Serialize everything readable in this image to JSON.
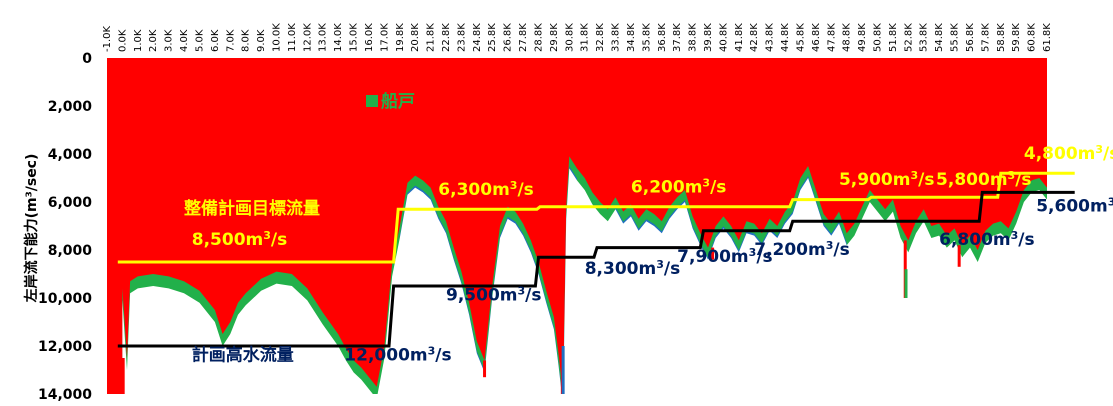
{
  "chart_data": {
    "type": "area",
    "ylabel": "左岸流下能力(m³/sec)",
    "ylim": [
      0,
      14000
    ],
    "y_inverted": true,
    "y_ticks": [
      "0",
      "2,000",
      "4,000",
      "6,000",
      "8,000",
      "10,000",
      "12,000",
      "14,000"
    ],
    "x_ticks": [
      "-1.0K",
      "0.0K",
      "1.0K",
      "2.0K",
      "3.0K",
      "4.0K",
      "5.0K",
      "6.0K",
      "7.0K",
      "8.0K",
      "9.0K",
      "10.0K",
      "11.0K",
      "12.0K",
      "13.0K",
      "14.0K",
      "15.0K",
      "16.0K",
      "17.0K",
      "19.8K",
      "20.8K",
      "21.8K",
      "22.8K",
      "23.8K",
      "24.8K",
      "25.8K",
      "26.8K",
      "27.8K",
      "28.8K",
      "29.8K",
      "30.8K",
      "31.8K",
      "32.8K",
      "33.8K",
      "34.8K",
      "35.8K",
      "36.8K",
      "37.8K",
      "38.8K",
      "39.8K",
      "40.8K",
      "41.8K",
      "42.8K",
      "43.8K",
      "44.8K",
      "45.8K",
      "46.8K",
      "47.8K",
      "48.8K",
      "49.8K",
      "50.8K",
      "51.8K",
      "52.8K",
      "53.8K",
      "54.8K",
      "55.8K",
      "56.8K",
      "57.8K",
      "58.8K",
      "59.8K",
      "60.8K",
      "61.8K"
    ],
    "colors": {
      "red": "#ff0000",
      "green": "#22b04a",
      "blue": "#1f6fc1",
      "yellow": "#ffff00",
      "black": "#000000"
    },
    "legend": {
      "label": "船戸",
      "color": "#22b04a"
    },
    "capacity_profile": [
      [
        0,
        9600
      ],
      [
        0.3,
        12500
      ],
      [
        0.5,
        9300
      ],
      [
        1,
        9100
      ],
      [
        2,
        9000
      ],
      [
        3,
        9100
      ],
      [
        4,
        9300
      ],
      [
        5,
        9700
      ],
      [
        6,
        10500
      ],
      [
        6.5,
        11500
      ],
      [
        7,
        11000
      ],
      [
        7.5,
        10200
      ],
      [
        8,
        9800
      ],
      [
        9,
        9200
      ],
      [
        10,
        8900
      ],
      [
        11,
        9000
      ],
      [
        12,
        9600
      ],
      [
        13,
        10600
      ],
      [
        14,
        11500
      ],
      [
        14.5,
        12100
      ],
      [
        15,
        12600
      ],
      [
        15.5,
        12900
      ],
      [
        16,
        13300
      ],
      [
        16.5,
        13700
      ],
      [
        17,
        12000
      ],
      [
        17.5,
        8600
      ],
      [
        18,
        7000
      ],
      [
        18.5,
        5200
      ],
      [
        19,
        4900
      ],
      [
        19.5,
        5100
      ],
      [
        20,
        5400
      ],
      [
        20.5,
        6200
      ],
      [
        21,
        6800
      ],
      [
        21.5,
        7900
      ],
      [
        22,
        8900
      ],
      [
        22.5,
        10200
      ],
      [
        23,
        11800
      ],
      [
        23.5,
        12600
      ],
      [
        24,
        9500
      ],
      [
        24.5,
        7000
      ],
      [
        25,
        6200
      ],
      [
        25.5,
        6400
      ],
      [
        26,
        6900
      ],
      [
        26.5,
        7600
      ],
      [
        27,
        8500
      ],
      [
        27.5,
        9700
      ],
      [
        28,
        10800
      ],
      [
        28.3,
        12300
      ],
      [
        28.6,
        14000
      ],
      [
        28.8,
        6200
      ],
      [
        29,
        4100
      ],
      [
        29.5,
        4600
      ],
      [
        30,
        5000
      ],
      [
        30.5,
        5600
      ],
      [
        31,
        6000
      ],
      [
        31.5,
        6300
      ],
      [
        32,
        5800
      ],
      [
        32.5,
        6400
      ],
      [
        33,
        6100
      ],
      [
        33.5,
        6700
      ],
      [
        34,
        6300
      ],
      [
        34.5,
        6500
      ],
      [
        35,
        6800
      ],
      [
        35.5,
        6200
      ],
      [
        36,
        5800
      ],
      [
        36.5,
        5500
      ],
      [
        37,
        6600
      ],
      [
        37.5,
        7300
      ],
      [
        38,
        7900
      ],
      [
        38.5,
        7000
      ],
      [
        39,
        6600
      ],
      [
        39.5,
        7000
      ],
      [
        40,
        7600
      ],
      [
        40.5,
        6800
      ],
      [
        41,
        6900
      ],
      [
        41.5,
        7300
      ],
      [
        42,
        6700
      ],
      [
        42.5,
        7000
      ],
      [
        43,
        6400
      ],
      [
        43.5,
        6000
      ],
      [
        44,
        5000
      ],
      [
        44.5,
        4500
      ],
      [
        45,
        5500
      ],
      [
        45.5,
        6500
      ],
      [
        46,
        6900
      ],
      [
        46.5,
        6400
      ],
      [
        47,
        7300
      ],
      [
        47.5,
        6900
      ],
      [
        48,
        6200
      ],
      [
        48.5,
        5500
      ],
      [
        49,
        5900
      ],
      [
        49.5,
        6300
      ],
      [
        50,
        5900
      ],
      [
        50.5,
        7000
      ],
      [
        51,
        7600
      ],
      [
        51.5,
        6800
      ],
      [
        52,
        6300
      ],
      [
        52.5,
        7000
      ],
      [
        53,
        6900
      ],
      [
        53.5,
        7400
      ],
      [
        54,
        7100
      ],
      [
        54.5,
        7800
      ],
      [
        55,
        7400
      ],
      [
        55.5,
        8000
      ],
      [
        56,
        7200
      ],
      [
        56.5,
        6900
      ],
      [
        57,
        6800
      ],
      [
        57.5,
        7100
      ],
      [
        58,
        6400
      ],
      [
        58.5,
        5500
      ],
      [
        59,
        5100
      ],
      [
        59.5,
        5000
      ],
      [
        60,
        5400
      ],
      [
        60.5,
        5800
      ],
      [
        61,
        6700
      ],
      [
        61.8,
        7100
      ]
    ],
    "lines": [
      {
        "name": "整備計画目標流量",
        "color": "#ffff00",
        "points": [
          [
            -0.3,
            8500
          ],
          [
            17.6,
            8500
          ],
          [
            17.9,
            6300
          ],
          [
            26.9,
            6300
          ],
          [
            27.1,
            6200
          ],
          [
            43.3,
            6200
          ],
          [
            43.5,
            5900
          ],
          [
            48.4,
            5900
          ],
          [
            48.6,
            5800
          ],
          [
            56.8,
            5800
          ],
          [
            57.0,
            4800
          ],
          [
            61.8,
            4800
          ]
        ]
      },
      {
        "name": "計画高水流量",
        "color": "#000000",
        "points": [
          [
            -0.3,
            12000
          ],
          [
            17.3,
            12000
          ],
          [
            17.6,
            9500
          ],
          [
            26.8,
            9500
          ],
          [
            27.0,
            8300
          ],
          [
            30.6,
            8300
          ],
          [
            30.8,
            7900
          ],
          [
            37.5,
            7900
          ],
          [
            37.7,
            7200
          ],
          [
            43.3,
            7200
          ],
          [
            43.5,
            6800
          ],
          [
            55.6,
            6800
          ],
          [
            55.8,
            5600
          ],
          [
            61.8,
            5600
          ]
        ]
      }
    ],
    "annotations": [
      {
        "text": "8,500m³/s",
        "color": "#ffff00",
        "x": 4.5,
        "y": 7800
      },
      {
        "text": "6,300m³/s",
        "color": "#ffff00",
        "x": 20.5,
        "y": 5700
      },
      {
        "text": "6,200m³/s",
        "color": "#ffff00",
        "x": 33.0,
        "y": 5600
      },
      {
        "text": "5,900m³/s",
        "color": "#ffff00",
        "x": 46.5,
        "y": 5300
      },
      {
        "text": "5,800m³/s",
        "color": "#ffff00",
        "x": 52.8,
        "y": 5300
      },
      {
        "text": "4,800m³/s",
        "color": "#ffff00",
        "x": 58.5,
        "y": 4200
      },
      {
        "text": "12,000m³/s",
        "color": "#002060",
        "x": 14.4,
        "y": 12600
      },
      {
        "text": "9,500m³/s",
        "color": "#002060",
        "x": 21.0,
        "y": 10100
      },
      {
        "text": "8,300m³/s",
        "color": "#002060",
        "x": 30.0,
        "y": 9000
      },
      {
        "text": "7,900m³/s",
        "color": "#002060",
        "x": 36.0,
        "y": 8500
      },
      {
        "text": "7,200m³/s",
        "color": "#002060",
        "x": 41.0,
        "y": 8200
      },
      {
        "text": "6,800m³/s",
        "color": "#002060",
        "x": 53.0,
        "y": 7800
      },
      {
        "text": "5,600m³/s",
        "color": "#002060",
        "x": 59.3,
        "y": 6400
      }
    ],
    "labels": [
      {
        "text": "整備計画目標流量",
        "color": "#ffff00",
        "x": 4.0,
        "y": 6500
      },
      {
        "text": "計画高水流量",
        "color": "#002060",
        "x": 4.5,
        "y": 12600
      }
    ]
  }
}
